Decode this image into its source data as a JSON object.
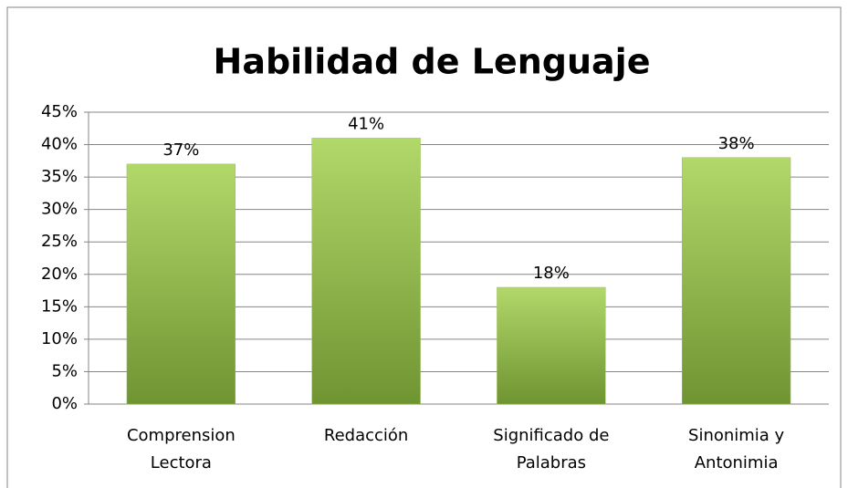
{
  "chart_data": {
    "type": "bar",
    "title": "Habilidad de Lenguaje",
    "categories": [
      "Comprension\nLectora",
      "Redacción",
      "Significado de\nPalabras",
      "Sinonimia y\nAntonimia"
    ],
    "values": [
      37,
      41,
      18,
      38
    ],
    "value_labels": [
      "37%",
      "41%",
      "18%",
      "38%"
    ],
    "color": "#9bbb59",
    "ylim": [
      0,
      45
    ],
    "yticks": [
      {
        "value": 0,
        "label": "0%"
      },
      {
        "value": 5,
        "label": "5%"
      },
      {
        "value": 10,
        "label": "10%"
      },
      {
        "value": 15,
        "label": "15%"
      },
      {
        "value": 20,
        "label": "20%"
      },
      {
        "value": 25,
        "label": "25%"
      },
      {
        "value": 30,
        "label": "30%"
      },
      {
        "value": 35,
        "label": "35%"
      },
      {
        "value": 40,
        "label": "40%"
      },
      {
        "value": 45,
        "label": "45%"
      }
    ],
    "grid": true
  }
}
